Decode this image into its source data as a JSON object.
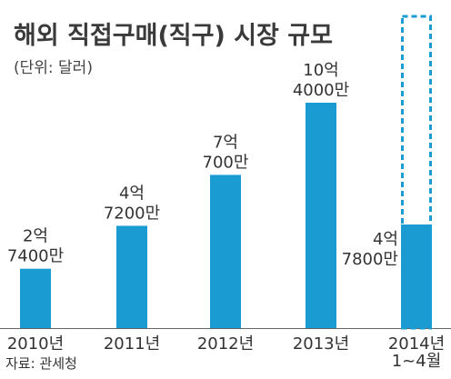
{
  "chart_data": {
    "type": "bar",
    "title": "해외 직접구매(직구) 시장 규모",
    "unit_note": "(단위: 달러)",
    "source": "자료: 관세청",
    "categories": [
      [
        "2010년"
      ],
      [
        "2011년"
      ],
      [
        "2012년"
      ],
      [
        "2013년"
      ],
      [
        "2014년",
        "1~4월"
      ]
    ],
    "values": [
      274000000,
      472000000,
      707000000,
      1040000000,
      478000000
    ],
    "value_labels": [
      [
        "2억",
        "7400만"
      ],
      [
        "4억",
        "7200만"
      ],
      [
        "7억",
        "700만"
      ],
      [
        "10억",
        "4000만"
      ],
      [
        "4억",
        "7800만"
      ]
    ],
    "ylim": [
      0,
      1040000000
    ],
    "grid": false,
    "colors": {
      "bar": "#1a9bd2",
      "dashed_outline": "#1a9bd2",
      "axis": "#666666"
    }
  }
}
